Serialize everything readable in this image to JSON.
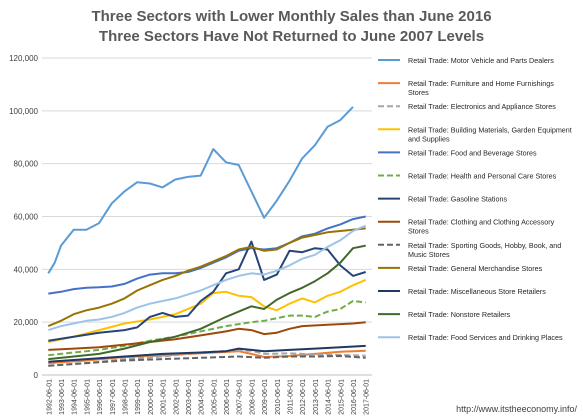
{
  "chart_data": {
    "type": "line",
    "title": "Three Sectors with Lower Monthly Sales than June 2016",
    "subtitle": "Three Sectors Have Not Returned to June 2007 Levels",
    "source": "http://www.itstheeconomy.info/",
    "ylim": [
      0,
      120000
    ],
    "y_ticks": [
      "0",
      "20,000",
      "40,000",
      "60,000",
      "80,000",
      "100,000",
      "120,000"
    ],
    "grid": true,
    "legend_position": "right",
    "categories": [
      "1992-06-01",
      "1993-06-01",
      "1994-06-01",
      "1995-06-01",
      "1996-06-01",
      "1997-06-01",
      "1998-06-01",
      "1999-06-01",
      "2000-06-01",
      "2001-06-01",
      "2002-06-01",
      "2003-06-01",
      "2004-06-01",
      "2005-06-01",
      "2006-06-01",
      "2007-06-01",
      "2008-06-01",
      "2009-06-01",
      "2010-06-01",
      "2011-06-01",
      "2012-06-01",
      "2013-06-01",
      "2014-06-01",
      "2015-06-01",
      "2016-06-01",
      "2017-06-01"
    ],
    "series": [
      {
        "name": "Retail Trade: Motor Vehicle and Parts Dealers",
        "color": "#5b9bd5",
        "dash": "",
        "values": [
          null,
          null,
          null,
          null,
          null,
          null,
          null,
          null,
          null,
          null,
          null,
          null,
          null,
          null,
          null,
          null,
          null,
          null,
          null,
          null,
          null,
          null,
          null,
          null,
          null,
          null
        ],
        "points": [
          [
            0,
            38500
          ],
          [
            0.5,
            42500
          ],
          [
            1,
            49000
          ],
          [
            2,
            55000
          ],
          [
            3,
            55000
          ],
          [
            4,
            57500
          ],
          [
            5,
            65000
          ],
          [
            6,
            69500
          ],
          [
            7,
            73000
          ],
          [
            8,
            72500
          ],
          [
            9,
            71000
          ],
          [
            10,
            74000
          ],
          [
            11,
            75000
          ],
          [
            12,
            75500
          ],
          [
            13,
            85500
          ],
          [
            14,
            80500
          ],
          [
            15,
            79500
          ],
          [
            16,
            69500
          ],
          [
            17,
            59500
          ],
          [
            18,
            66000
          ],
          [
            19,
            73500
          ],
          [
            20,
            82000
          ],
          [
            21,
            87000
          ],
          [
            22,
            94000
          ],
          [
            23,
            96500
          ],
          [
            24,
            101500
          ]
        ]
      },
      {
        "name": "Retail Trade: Furniture and Home Furnishings Stores",
        "color": "#ed7d31",
        "dash": "",
        "points": [
          [
            0,
            4500
          ],
          [
            3,
            5500
          ],
          [
            6,
            6800
          ],
          [
            9,
            7400
          ],
          [
            12,
            8200
          ],
          [
            15,
            9000
          ],
          [
            16,
            8000
          ],
          [
            17,
            6800
          ],
          [
            19,
            7200
          ],
          [
            21,
            8000
          ],
          [
            23,
            8800
          ],
          [
            25,
            9200
          ]
        ]
      },
      {
        "name": "Retail Trade: Electronics and Appliance Stores",
        "color": "#a5a5a5",
        "dash": "6,3",
        "points": [
          [
            0,
            3500
          ],
          [
            3,
            4500
          ],
          [
            6,
            6000
          ],
          [
            9,
            7000
          ],
          [
            12,
            8500
          ],
          [
            15,
            9300
          ],
          [
            16,
            9200
          ],
          [
            17,
            8000
          ],
          [
            19,
            8200
          ],
          [
            21,
            7800
          ],
          [
            23,
            7600
          ],
          [
            25,
            7300
          ]
        ]
      },
      {
        "name": "Retail Trade: Building Materials, Garden Equipment and Supplies",
        "color": "#ffc000",
        "dash": "",
        "points": [
          [
            0,
            12500
          ],
          [
            2,
            14500
          ],
          [
            4,
            17000
          ],
          [
            6,
            19500
          ],
          [
            8,
            21000
          ],
          [
            10,
            23000
          ],
          [
            12,
            27000
          ],
          [
            13,
            31000
          ],
          [
            14,
            31500
          ],
          [
            15,
            30000
          ],
          [
            16,
            29500
          ],
          [
            17,
            26000
          ],
          [
            18,
            24500
          ],
          [
            19,
            27000
          ],
          [
            20,
            29000
          ],
          [
            21,
            27500
          ],
          [
            22,
            30000
          ],
          [
            23,
            31500
          ],
          [
            24,
            34000
          ],
          [
            25,
            36000
          ]
        ]
      },
      {
        "name": "Retail Trade: Food and Beverage Stores",
        "color": "#4472c4",
        "dash": "",
        "points": [
          [
            0,
            30800
          ],
          [
            1,
            31500
          ],
          [
            2,
            32500
          ],
          [
            3,
            33000
          ],
          [
            4,
            33200
          ],
          [
            5,
            33500
          ],
          [
            6,
            34500
          ],
          [
            7,
            36500
          ],
          [
            8,
            38000
          ],
          [
            9,
            38500
          ],
          [
            10,
            38500
          ],
          [
            11,
            39000
          ],
          [
            12,
            40500
          ],
          [
            13,
            42500
          ],
          [
            14,
            44500
          ],
          [
            15,
            47000
          ],
          [
            16,
            48000
          ],
          [
            17,
            47500
          ],
          [
            18,
            48000
          ],
          [
            19,
            50000
          ],
          [
            20,
            52500
          ],
          [
            21,
            53500
          ],
          [
            22,
            55500
          ],
          [
            23,
            57000
          ],
          [
            24,
            59000
          ],
          [
            25,
            60000
          ]
        ]
      },
      {
        "name": "Retail Trade: Health and Personal Care Stores",
        "color": "#70ad47",
        "dash": "6,3",
        "points": [
          [
            0,
            7500
          ],
          [
            2,
            8500
          ],
          [
            4,
            9500
          ],
          [
            6,
            11000
          ],
          [
            8,
            13000
          ],
          [
            10,
            14500
          ],
          [
            12,
            16500
          ],
          [
            14,
            18500
          ],
          [
            16,
            20000
          ],
          [
            17,
            20500
          ],
          [
            18,
            21500
          ],
          [
            19,
            22500
          ],
          [
            20,
            22500
          ],
          [
            21,
            22000
          ],
          [
            22,
            24000
          ],
          [
            23,
            25000
          ],
          [
            24,
            28000
          ],
          [
            25,
            27500
          ]
        ]
      },
      {
        "name": "Retail Trade: Gasoline Stations",
        "color": "#264478",
        "dash": "",
        "points": [
          [
            0,
            13000
          ],
          [
            2,
            14500
          ],
          [
            4,
            16000
          ],
          [
            6,
            17000
          ],
          [
            7,
            18000
          ],
          [
            8,
            22000
          ],
          [
            9,
            23500
          ],
          [
            10,
            22000
          ],
          [
            11,
            22500
          ],
          [
            12,
            28000
          ],
          [
            13,
            31500
          ],
          [
            14,
            38500
          ],
          [
            15,
            40000
          ],
          [
            16,
            50500
          ],
          [
            17,
            36000
          ],
          [
            18,
            38000
          ],
          [
            19,
            47000
          ],
          [
            20,
            46500
          ],
          [
            21,
            48000
          ],
          [
            22,
            47500
          ],
          [
            23,
            41500
          ],
          [
            24,
            37500
          ],
          [
            25,
            39000
          ]
        ]
      },
      {
        "name": "Retail Trade: Clothing and Clothing Accessory Stores",
        "color": "#9e480e",
        "dash": "",
        "points": [
          [
            0,
            9500
          ],
          [
            2,
            10000
          ],
          [
            4,
            10500
          ],
          [
            6,
            11500
          ],
          [
            8,
            12500
          ],
          [
            10,
            13500
          ],
          [
            12,
            15000
          ],
          [
            14,
            16500
          ],
          [
            15,
            17500
          ],
          [
            16,
            17000
          ],
          [
            17,
            15500
          ],
          [
            18,
            16000
          ],
          [
            19,
            17500
          ],
          [
            20,
            18500
          ],
          [
            22,
            19000
          ],
          [
            24,
            19500
          ],
          [
            25,
            20000
          ]
        ]
      },
      {
        "name": "Retail Trade: Sporting Goods, Hobby, Book, and Music Stores",
        "color": "#636363",
        "dash": "6,3",
        "points": [
          [
            0,
            3500
          ],
          [
            3,
            4500
          ],
          [
            6,
            5500
          ],
          [
            9,
            6000
          ],
          [
            12,
            6500
          ],
          [
            15,
            7000
          ],
          [
            17,
            6500
          ],
          [
            19,
            7000
          ],
          [
            21,
            7000
          ],
          [
            23,
            7200
          ],
          [
            25,
            6500
          ]
        ]
      },
      {
        "name": "Retail Trade: General Merchandise Stores",
        "color": "#997300",
        "dash": "",
        "points": [
          [
            0,
            18500
          ],
          [
            1,
            20500
          ],
          [
            2,
            23000
          ],
          [
            3,
            24500
          ],
          [
            4,
            25500
          ],
          [
            5,
            27000
          ],
          [
            6,
            29000
          ],
          [
            7,
            32000
          ],
          [
            8,
            34000
          ],
          [
            9,
            36000
          ],
          [
            10,
            37500
          ],
          [
            11,
            39500
          ],
          [
            12,
            41000
          ],
          [
            13,
            43000
          ],
          [
            14,
            45000
          ],
          [
            15,
            47500
          ],
          [
            16,
            48500
          ],
          [
            17,
            47000
          ],
          [
            18,
            47500
          ],
          [
            19,
            50000
          ],
          [
            20,
            52000
          ],
          [
            21,
            53000
          ],
          [
            22,
            54000
          ],
          [
            23,
            54500
          ],
          [
            24,
            55000
          ],
          [
            25,
            55500
          ]
        ]
      },
      {
        "name": "Retail Trade: Miscellaneous Store Retailers",
        "color": "#203864",
        "dash": "",
        "points": [
          [
            0,
            5000
          ],
          [
            3,
            6000
          ],
          [
            6,
            7000
          ],
          [
            9,
            8000
          ],
          [
            12,
            8500
          ],
          [
            14,
            9000
          ],
          [
            15,
            10000
          ],
          [
            16,
            9500
          ],
          [
            17,
            9000
          ],
          [
            19,
            9500
          ],
          [
            21,
            10000
          ],
          [
            23,
            10500
          ],
          [
            25,
            11000
          ]
        ]
      },
      {
        "name": "Retail Trade: Nonstore Retailers",
        "color": "#43682b",
        "dash": "",
        "points": [
          [
            0,
            6000
          ],
          [
            2,
            7000
          ],
          [
            4,
            8000
          ],
          [
            6,
            10000
          ],
          [
            8,
            12500
          ],
          [
            10,
            14500
          ],
          [
            12,
            17500
          ],
          [
            14,
            22000
          ],
          [
            15,
            24000
          ],
          [
            16,
            26000
          ],
          [
            17,
            25000
          ],
          [
            18,
            28500
          ],
          [
            19,
            31000
          ],
          [
            20,
            33000
          ],
          [
            21,
            35500
          ],
          [
            22,
            38500
          ],
          [
            23,
            42500
          ],
          [
            24,
            48000
          ],
          [
            25,
            49000
          ]
        ]
      },
      {
        "name": "Retail Trade: Food Services and Drinking Places",
        "color": "#9dc3e6",
        "dash": "",
        "points": [
          [
            0,
            17000
          ],
          [
            1,
            18500
          ],
          [
            2,
            19500
          ],
          [
            3,
            20500
          ],
          [
            4,
            21000
          ],
          [
            5,
            22000
          ],
          [
            6,
            23500
          ],
          [
            7,
            25500
          ],
          [
            8,
            27000
          ],
          [
            9,
            28000
          ],
          [
            10,
            29000
          ],
          [
            11,
            30500
          ],
          [
            12,
            32000
          ],
          [
            13,
            34000
          ],
          [
            14,
            36000
          ],
          [
            15,
            37500
          ],
          [
            16,
            38500
          ],
          [
            17,
            38000
          ],
          [
            18,
            39500
          ],
          [
            19,
            41500
          ],
          [
            20,
            44000
          ],
          [
            21,
            45500
          ],
          [
            22,
            48500
          ],
          [
            23,
            51000
          ],
          [
            24,
            54500
          ],
          [
            25,
            56500
          ]
        ]
      }
    ]
  }
}
